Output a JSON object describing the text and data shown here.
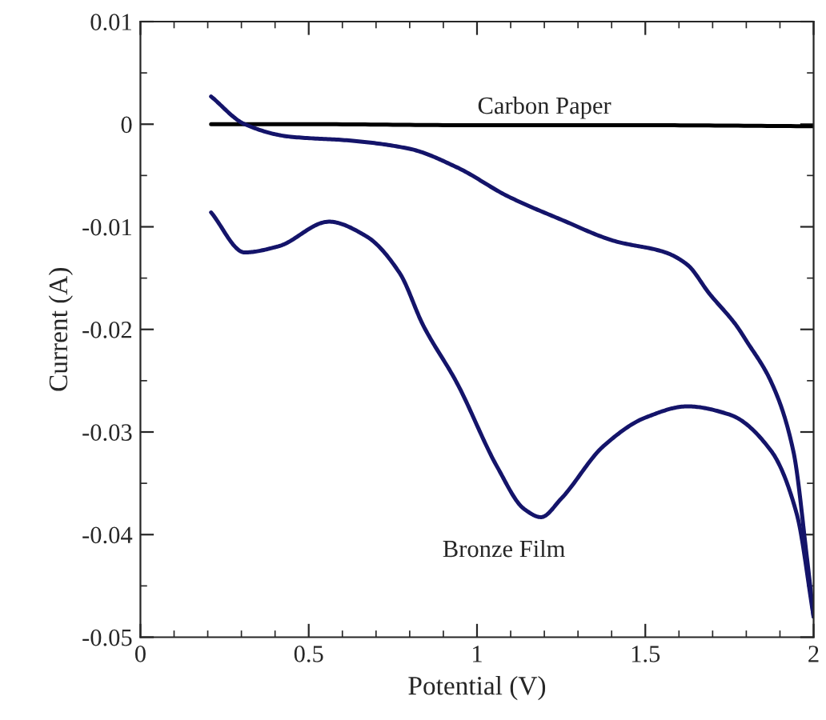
{
  "chart_data": {
    "type": "line",
    "xlabel": "Potential (V)",
    "ylabel": "Current (A)",
    "xlim": [
      0,
      2
    ],
    "xticks": [
      0,
      0.5,
      1,
      1.5,
      2
    ],
    "ylim": [
      -0.05,
      0.01
    ],
    "yticks": [
      -0.05,
      -0.04,
      -0.03,
      -0.02,
      -0.01,
      0,
      0.01
    ],
    "grid": false,
    "legend": false,
    "series": [
      {
        "name": "Carbon Paper",
        "color": "#000000",
        "x": [
          0.21,
          0.5,
          1.0,
          1.5,
          2.0
        ],
        "values": [
          0,
          0,
          -0.0001,
          -0.0001,
          -0.0002
        ]
      },
      {
        "color": "#14146a",
        "x": [
          0.21,
          0.31,
          0.44,
          0.625,
          0.8,
          0.94,
          1.09,
          1.25,
          1.41,
          1.56,
          1.625,
          1.69,
          1.77,
          1.8,
          1.875,
          1.94,
          1.98,
          2.0
        ],
        "values": [
          0.0027,
          0,
          -0.0012,
          -0.0016,
          -0.0024,
          -0.0042,
          -0.007,
          -0.0093,
          -0.0114,
          -0.0125,
          -0.0137,
          -0.0165,
          -0.0196,
          -0.0211,
          -0.0252,
          -0.0319,
          -0.0422,
          -0.048
        ]
      },
      {
        "name": "Bronze Film",
        "color": "#14146a",
        "x": [
          0.21,
          0.31,
          0.41,
          0.56,
          0.67,
          0.77,
          0.84,
          0.94,
          1.06,
          1.14,
          1.19,
          1.25,
          1.375,
          1.5,
          1.625,
          1.75,
          1.875,
          1.95,
          2.0
        ],
        "values": [
          -0.0086,
          -0.0125,
          -0.0119,
          -0.0095,
          -0.0109,
          -0.0145,
          -0.0196,
          -0.0252,
          -0.0334,
          -0.0375,
          -0.0383,
          -0.0365,
          -0.0314,
          -0.0286,
          -0.0275,
          -0.0283,
          -0.0319,
          -0.038,
          -0.048
        ]
      }
    ]
  }
}
